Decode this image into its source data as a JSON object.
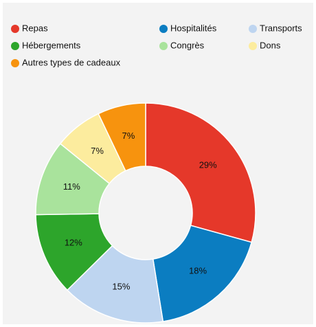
{
  "chart_data": {
    "type": "donut",
    "categories": [
      "Repas",
      "Hospitalités",
      "Transports",
      "Hébergements",
      "Congrès",
      "Dons",
      "Autres types de cadeaux"
    ],
    "values": [
      29,
      18,
      15,
      12,
      11,
      7,
      7
    ],
    "value_labels": [
      "29%",
      "18%",
      "15%",
      "12%",
      "11%",
      "7%",
      "7%"
    ],
    "colors": [
      "#e5382a",
      "#0b7dc1",
      "#bed5f0",
      "#2da52b",
      "#a9e39c",
      "#fcec9e",
      "#f7930e"
    ]
  }
}
